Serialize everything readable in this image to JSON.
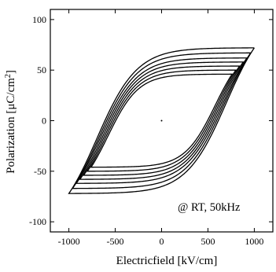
{
  "chart_data": {
    "type": "line",
    "title": "",
    "xlabel": "Electricfield [kV/cm]",
    "ylabel_main": "Polarization [μC/cm",
    "ylabel_sup": "2",
    "ylabel_end": "]",
    "annotation": "@ RT, 50kHz",
    "xlim": [
      -1200,
      1200
    ],
    "ylim": [
      -110,
      110
    ],
    "xticks": [
      -1000,
      -500,
      0,
      500,
      1000
    ],
    "yticks": [
      -100,
      -50,
      0,
      50,
      100
    ],
    "xtick_labels": [
      "-1000",
      "-500",
      "0",
      "500",
      "1000"
    ],
    "ytick_labels": [
      "-100",
      "-50",
      "0",
      "50",
      "100"
    ],
    "grid": false,
    "series": [
      {
        "emax": 1000,
        "pmax": 72,
        "pr": 52,
        "ec": 700
      },
      {
        "emax": 960,
        "pmax": 67,
        "pr": 47,
        "ec": 680
      },
      {
        "emax": 920,
        "pmax": 62,
        "pr": 42,
        "ec": 660
      },
      {
        "emax": 880,
        "pmax": 58,
        "pr": 38,
        "ec": 640
      },
      {
        "emax": 840,
        "pmax": 54,
        "pr": 34,
        "ec": 620
      },
      {
        "emax": 800,
        "pmax": 50,
        "pr": 31,
        "ec": 600
      },
      {
        "emax": 760,
        "pmax": 46,
        "pr": 28,
        "ec": 580
      }
    ],
    "stray_point": {
      "x": 0,
      "y": 0
    }
  }
}
